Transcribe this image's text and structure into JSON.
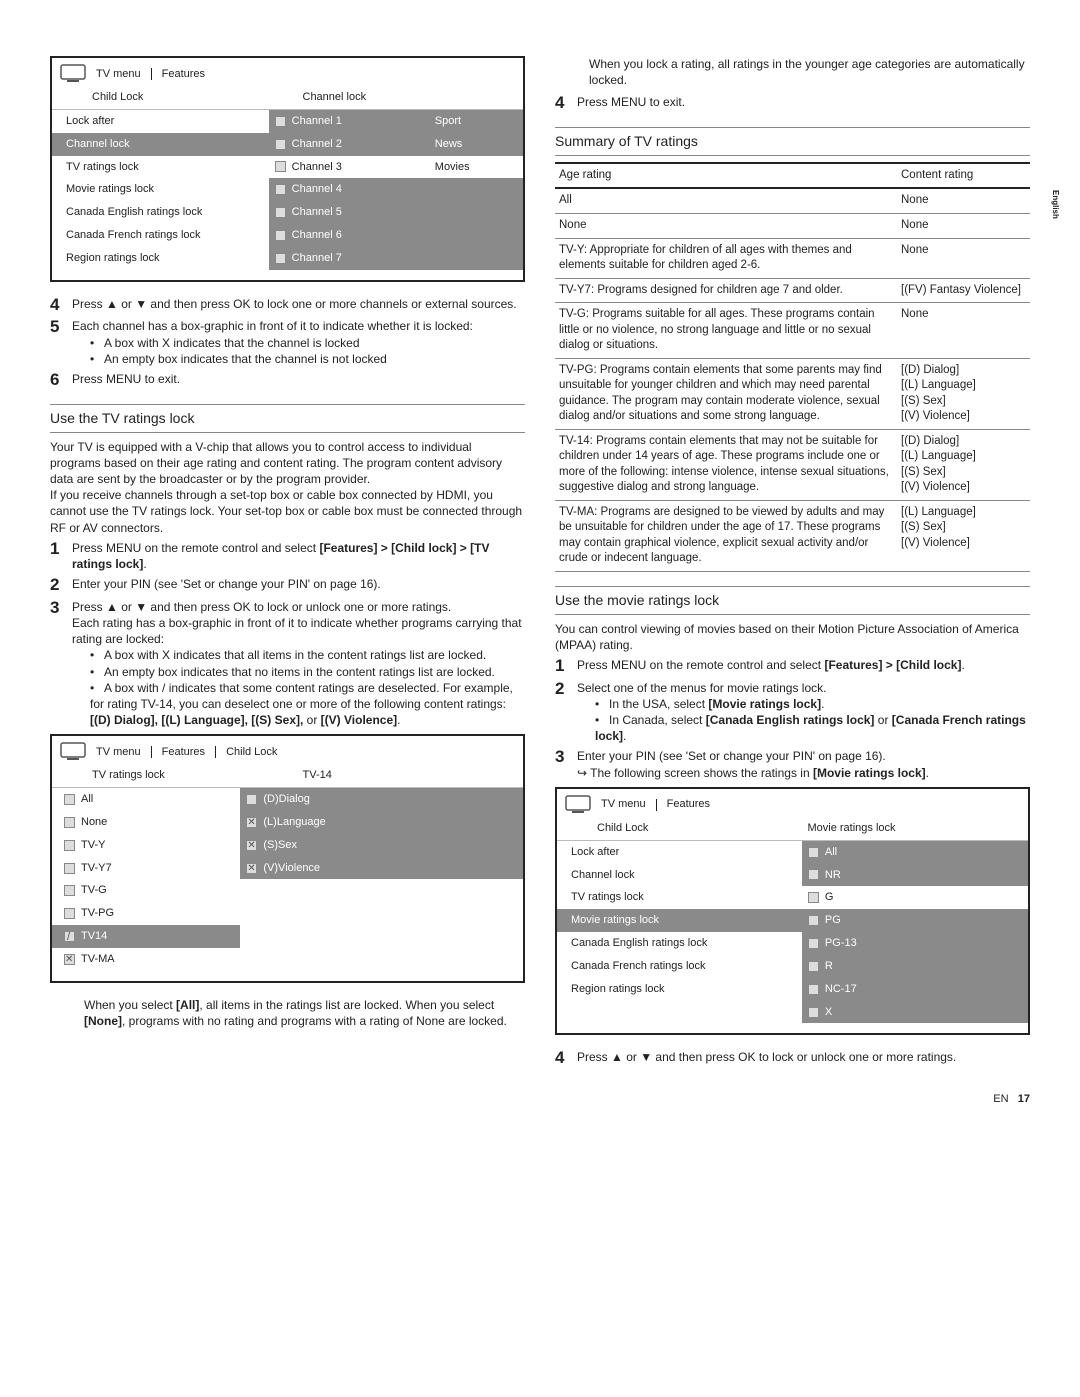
{
  "rightTab": "English",
  "footer": {
    "lang": "EN",
    "page": "17"
  },
  "menu1": {
    "crumbs": [
      "TV menu",
      "Features"
    ],
    "hdr": {
      "c1": "Child Lock",
      "c2": "Channel lock"
    },
    "rows": [
      {
        "c1": "Lock after",
        "c2": "Channel 1",
        "c3": "Sport",
        "hl2": true
      },
      {
        "c1": "Channel lock",
        "c2": "Channel 2",
        "c3": "News",
        "hl": true,
        "hl2": true
      },
      {
        "c1": "TV ratings lock",
        "c2": "Channel 3",
        "c3": "Movies"
      },
      {
        "c1": "Movie ratings lock",
        "c2": "Channel 4",
        "c3": "",
        "hl2": true
      },
      {
        "c1": "Canada English ratings lock",
        "c2": "Channel 5",
        "c3": "",
        "hl2": true
      },
      {
        "c1": "Canada French ratings lock",
        "c2": "Channel 6",
        "c3": "",
        "hl2": true
      },
      {
        "c1": "Region ratings lock",
        "c2": "Channel 7",
        "c3": "",
        "hl2": true
      }
    ]
  },
  "steps1": {
    "s4": "Press ▲ or ▼ and then press OK to lock one or more channels or external sources.",
    "s5": "Each channel has a box-graphic in front of it to indicate whether it is locked:",
    "s5b": [
      "A box with X indicates that the channel is locked",
      "An empty box indicates that the channel is not locked"
    ],
    "s6": "Press MENU to exit."
  },
  "sec1": {
    "title": "Use the TV ratings lock",
    "p1": "Your TV is equipped with a V-chip that allows you to control access to individual programs based on their age rating and content rating. The program content advisory data are sent by the broadcaster or by the program provider.",
    "p2": "If you receive channels through a set-top box or cable box connected by HDMI, you cannot use the TV ratings lock. Your set-top box or cable box must be connected through RF or AV connectors.",
    "s1a": "Press MENU on the remote control and select ",
    "s1b": "[Features] > [Child lock] > [TV ratings lock]",
    "s1c": ".",
    "s2": "Enter your PIN (see 'Set or change your PIN' on page 16).",
    "s3a": "Press ▲ or ▼ and then press OK to lock or unlock one or more ratings.",
    "s3b": "Each rating has a box-graphic in front of it to indicate whether programs carrying that rating are locked:",
    "s3bul": [
      "A box with X indicates that all items in the content ratings list are locked.",
      "An empty box indicates that no items in the content ratings list are locked."
    ],
    "s3last_a": "A box with / indicates that some content ratings are deselected. For example, for rating TV-14, you can deselect one or more of the following content ratings: ",
    "s3last_b": "[(D) Dialog], [(L) Language], [(S) Sex],",
    "s3last_c": " or ",
    "s3last_d": "[(V) Violence]",
    "s3last_e": "."
  },
  "menu2": {
    "crumbs": [
      "TV menu",
      "Features",
      "Child Lock"
    ],
    "hdr": {
      "c1": "TV ratings lock",
      "c2": "TV-14"
    },
    "rows": [
      {
        "c1": "All",
        "chk1": "",
        "c2": "(D)Dialog",
        "chk2": "",
        "hl2": true
      },
      {
        "c1": "None",
        "chk1": "",
        "c2": "(L)Language",
        "chk2": "x",
        "hl2": true
      },
      {
        "c1": "TV-Y",
        "chk1": "",
        "c2": "(S)Sex",
        "chk2": "x",
        "hl2": true
      },
      {
        "c1": "TV-Y7",
        "chk1": "",
        "c2": "(V)Violence",
        "chk2": "x",
        "hl2": true
      },
      {
        "c1": "TV-G",
        "chk1": ""
      },
      {
        "c1": "TV-PG",
        "chk1": ""
      },
      {
        "c1": "TV14",
        "chk1": "s",
        "hl": true
      },
      {
        "c1": "TV-MA",
        "chk1": "x"
      }
    ]
  },
  "note1a": "When you select ",
  "note1b": "[All]",
  "note1c": ", all items in the ratings list are locked. When you select ",
  "note1d": "[None]",
  "note1e": ", programs with no rating and programs with a rating of None are locked.",
  "rightTop": {
    "p1": "When you lock a rating, all ratings in the younger age categories are automatically locked.",
    "s4": "Press MENU to exit."
  },
  "summary": {
    "title": "Summary of TV ratings",
    "head": {
      "a": "Age rating",
      "b": "Content rating"
    },
    "rows": [
      {
        "a": "All",
        "b": "None"
      },
      {
        "a": "None",
        "b": "None"
      },
      {
        "a": "TV-Y: Appropriate for children of all ages with themes and elements suitable for children aged 2-6.",
        "b": "None"
      },
      {
        "a": "TV-Y7: Programs designed for children age 7 and older.",
        "b": "[(FV) Fantasy Violence]"
      },
      {
        "a": "TV-G: Programs suitable for all ages. These programs contain little or no violence, no strong language and little or no sexual dialog or situations.",
        "b": "None"
      },
      {
        "a": "TV-PG: Programs contain elements that some parents may find unsuitable for younger children and which may need parental guidance. The program may contain moderate violence, sexual dialog and/or situations and some strong language.",
        "b": "[(D) Dialog]\n[(L) Language]\n[(S) Sex]\n[(V) Violence]"
      },
      {
        "a": "TV-14: Programs contain elements that may not be suitable for children under 14 years of age. These programs include one or more of the following: intense violence, intense sexual situations, suggestive dialog and strong language.",
        "b": "[(D) Dialog]\n[(L) Language]\n[(S) Sex]\n[(V) Violence]"
      },
      {
        "a": "TV-MA: Programs are designed to be viewed by adults and may be unsuitable for children under the age of 17. These programs may contain graphical violence, explicit sexual activity and/or crude or indecent language.",
        "b": "[(L) Language]\n[(S) Sex]\n[(V) Violence]"
      }
    ]
  },
  "sec2": {
    "title": "Use the movie ratings lock",
    "p1": "You can control viewing of movies based on their Motion Picture Association of America (MPAA) rating.",
    "s1a": "Press MENU on the remote control and select ",
    "s1b": "[Features] > [Child lock]",
    "s1c": ".",
    "s2": "Select one of the menus for movie ratings lock.",
    "s2b1a": "In the USA, select ",
    "s2b1b": "[Movie ratings lock]",
    "s2b1c": ".",
    "s2b2a": "In Canada, select ",
    "s2b2b": "[Canada English ratings lock]",
    "s2b2c": " or ",
    "s2b2d": "[Canada French ratings lock]",
    "s2b2e": ".",
    "s3": "Enter your PIN (see 'Set or change your PIN' on page 16).",
    "s3sub_a": "↪ The following screen shows the ratings in ",
    "s3sub_b": "[Movie ratings lock]",
    "s3sub_c": "."
  },
  "menu3": {
    "crumbs": [
      "TV menu",
      "Features"
    ],
    "hdr": {
      "c1": "Child Lock",
      "c2": "Movie ratings lock"
    },
    "rows": [
      {
        "c1": "Lock after",
        "c2": "All",
        "chk2": "",
        "hl2": true
      },
      {
        "c1": "Channel lock",
        "c2": "NR",
        "chk2": "",
        "hl2": true
      },
      {
        "c1": "TV ratings lock",
        "c2": "G",
        "chk2": ""
      },
      {
        "c1": "Movie ratings lock",
        "c2": "PG",
        "chk2": "",
        "hl": true,
        "hl2": true
      },
      {
        "c1": "Canada English ratings lock",
        "c2": "PG-13",
        "chk2": "",
        "hl2": true
      },
      {
        "c1": "Canada French ratings lock",
        "c2": "R",
        "chk2": "",
        "hl2": true
      },
      {
        "c1": "Region ratings lock",
        "c2": "NC-17",
        "chk2": "",
        "hl2": true
      },
      {
        "c1": "",
        "c2": "X",
        "chk2": "",
        "hl2": true
      }
    ]
  },
  "steps3": {
    "s4": "Press ▲ or ▼ and then press OK to lock or unlock one or more ratings."
  }
}
